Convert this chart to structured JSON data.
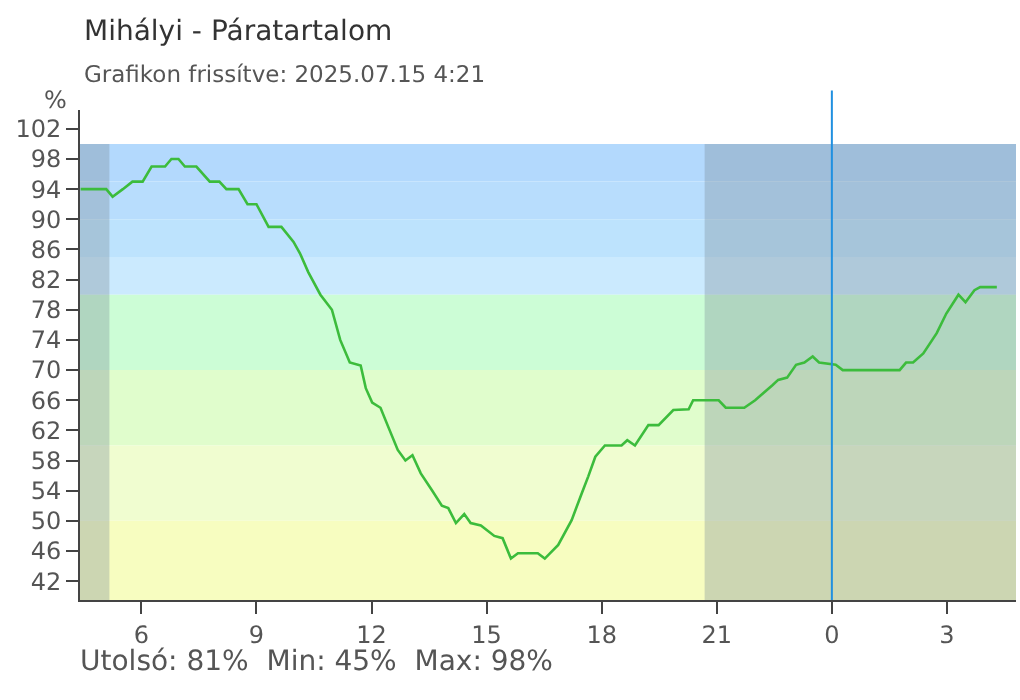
{
  "chart_data": {
    "type": "line",
    "title": "Mihályi - Páratartalom",
    "subtitle": "Grafikon frissítve: 2025.07.15 4:21",
    "ylabel": "%",
    "annotations": [
      "Utolsó: 81%  Min: 45%  Max: 98%"
    ],
    "x": [
      "2025-07-14T04:25",
      "2025-07-14T05:05",
      "2025-07-14T05:15",
      "2025-07-14T05:31",
      "2025-07-14T05:46",
      "2025-07-14T06:02",
      "2025-07-14T06:16",
      "2025-07-14T06:37",
      "2025-07-14T06:47",
      "2025-07-14T06:58",
      "2025-07-14T07:08",
      "2025-07-14T07:26",
      "2025-07-14T07:47",
      "2025-07-14T08:02",
      "2025-07-14T08:13",
      "2025-07-14T08:32",
      "2025-07-14T08:46",
      "2025-07-14T09:00",
      "2025-07-14T09:19",
      "2025-07-14T09:39",
      "2025-07-14T09:58",
      "2025-07-14T10:08",
      "2025-07-14T10:21",
      "2025-07-14T10:40",
      "2025-07-14T10:58",
      "2025-07-14T11:11",
      "2025-07-14T11:26",
      "2025-07-14T11:43",
      "2025-07-14T11:51",
      "2025-07-14T12:01",
      "2025-07-14T12:14",
      "2025-07-14T12:26",
      "2025-07-14T12:41",
      "2025-07-14T12:53",
      "2025-07-14T13:04",
      "2025-07-14T13:17",
      "2025-07-14T13:35",
      "2025-07-14T13:50",
      "2025-07-14T14:00",
      "2025-07-14T14:12",
      "2025-07-14T14:25",
      "2025-07-14T14:35",
      "2025-07-14T14:51",
      "2025-07-14T15:12",
      "2025-07-14T15:25",
      "2025-07-14T15:38",
      "2025-07-14T15:49",
      "2025-07-14T16:20",
      "2025-07-14T16:31",
      "2025-07-14T16:52",
      "2025-07-14T17:13",
      "2025-07-14T17:29",
      "2025-07-14T17:39",
      "2025-07-14T17:50",
      "2025-07-14T18:05",
      "2025-07-14T18:31",
      "2025-07-14T18:40",
      "2025-07-14T18:52",
      "2025-07-14T19:13",
      "2025-07-14T19:29",
      "2025-07-14T19:52",
      "2025-07-14T20:16",
      "2025-07-14T20:23",
      "2025-07-14T21:03",
      "2025-07-14T21:14",
      "2025-07-14T21:43",
      "2025-07-14T22:00",
      "2025-07-14T22:27",
      "2025-07-14T22:36",
      "2025-07-14T22:50",
      "2025-07-14T23:04",
      "2025-07-14T23:17",
      "2025-07-14T23:30",
      "2025-07-14T23:40",
      "2025-07-15T00:06",
      "2025-07-15T00:17",
      "2025-07-15T01:46",
      "2025-07-15T01:56",
      "2025-07-15T02:07",
      "2025-07-15T02:23",
      "2025-07-15T02:44",
      "2025-07-15T02:59",
      "2025-07-15T03:18",
      "2025-07-15T03:29",
      "2025-07-15T03:43",
      "2025-07-15T03:52",
      "2025-07-15T04:18"
    ],
    "series": [
      {
        "color": "#3cbc3c",
        "values": [
          94,
          94,
          93,
          94,
          95,
          95,
          97,
          97,
          98,
          98,
          97,
          97,
          95,
          95,
          94,
          94,
          92,
          92,
          89,
          89,
          87,
          85.5,
          83,
          80,
          78,
          74,
          71,
          70.6,
          67.6,
          65.7,
          65,
          62.5,
          59.4,
          58,
          58.7,
          56.3,
          54,
          52,
          51.7,
          49.7,
          50.9,
          49.7,
          49.4,
          48,
          47.7,
          45,
          45.7,
          45.7,
          45,
          46.8,
          50.1,
          53.7,
          55.9,
          58.5,
          60,
          60,
          60.7,
          60,
          62.7,
          62.7,
          64.7,
          64.8,
          66,
          66,
          65,
          65,
          66,
          68,
          68.7,
          69,
          70.7,
          71,
          71.8,
          71,
          70.7,
          70,
          70,
          71,
          71,
          72.2,
          74.9,
          77.5,
          80,
          79,
          80.6,
          81,
          81
        ]
      }
    ],
    "xlim": [
      "2025-07-14T04:24",
      "2025-07-15T04:48"
    ],
    "ylim": [
      39.5,
      104.5
    ],
    "xticks": [
      {
        "value": "2025-07-14T06:00",
        "label": "6"
      },
      {
        "value": "2025-07-14T09:00",
        "label": "9"
      },
      {
        "value": "2025-07-14T12:00",
        "label": "12"
      },
      {
        "value": "2025-07-14T15:00",
        "label": "15"
      },
      {
        "value": "2025-07-14T18:00",
        "label": "18"
      },
      {
        "value": "2025-07-14T21:00",
        "label": "21"
      },
      {
        "value": "2025-07-15T00:00",
        "label": "0"
      },
      {
        "value": "2025-07-15T03:00",
        "label": "3"
      }
    ],
    "yticks": [
      42,
      46,
      50,
      54,
      58,
      62,
      66,
      70,
      74,
      78,
      82,
      86,
      90,
      94,
      98,
      102
    ],
    "bands": [
      {
        "axis": "y",
        "from": 95,
        "to": 100,
        "color": "#b3d9fd"
      },
      {
        "axis": "y",
        "from": 90,
        "to": 95,
        "color": "#b8ddfd"
      },
      {
        "axis": "y",
        "from": 85,
        "to": 90,
        "color": "#bde3fd"
      },
      {
        "axis": "y",
        "from": 80,
        "to": 85,
        "color": "#cbeafe"
      },
      {
        "axis": "y",
        "from": 70,
        "to": 80,
        "color": "#ccfdd6"
      },
      {
        "axis": "y",
        "from": 60,
        "to": 70,
        "color": "#e0fdcc"
      },
      {
        "axis": "y",
        "from": 50,
        "to": 60,
        "color": "#f0fdd0"
      },
      {
        "axis": "y",
        "from": 39.5,
        "to": 50,
        "color": "#f7fdc0"
      },
      {
        "axis": "x",
        "from": "2025-07-14T04:24",
        "to": "2025-07-14T05:10",
        "color": "#7c8c98"
      },
      {
        "axis": "x",
        "from": "2025-07-14T20:41",
        "to": "2025-07-15T04:48",
        "color": "#7c8c98"
      }
    ],
    "ref_lines": [
      {
        "axis": "x",
        "value": "2025-07-15T00:00",
        "color": "#2090e0"
      }
    ],
    "grid": false,
    "legend": false,
    "marker": "none",
    "line_style": "solid"
  }
}
